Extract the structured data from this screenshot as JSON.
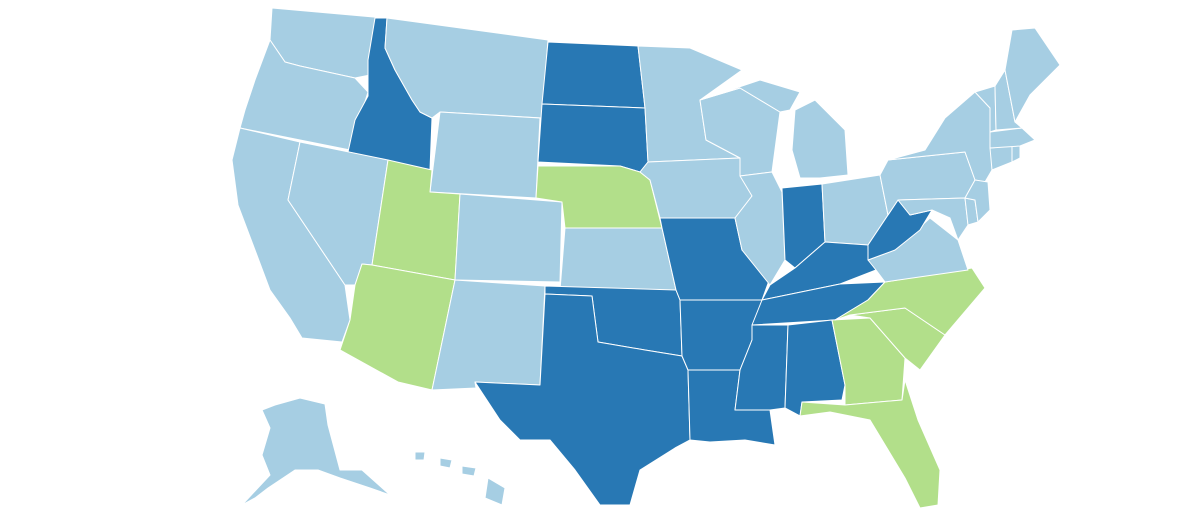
{
  "map": {
    "colors": {
      "light_blue": "#a6cee3",
      "dark_blue": "#2878b4",
      "green": "#b2df8a",
      "border": "#ffffff"
    },
    "states": [
      {
        "id": "WA",
        "category": "light_blue"
      },
      {
        "id": "OR",
        "category": "light_blue"
      },
      {
        "id": "CA",
        "category": "light_blue"
      },
      {
        "id": "ID",
        "category": "dark_blue"
      },
      {
        "id": "NV",
        "category": "light_blue"
      },
      {
        "id": "MT",
        "category": "light_blue"
      },
      {
        "id": "WY",
        "category": "light_blue"
      },
      {
        "id": "UT",
        "category": "green"
      },
      {
        "id": "AZ",
        "category": "green"
      },
      {
        "id": "CO",
        "category": "light_blue"
      },
      {
        "id": "NM",
        "category": "light_blue"
      },
      {
        "id": "ND",
        "category": "dark_blue"
      },
      {
        "id": "SD",
        "category": "dark_blue"
      },
      {
        "id": "NE",
        "category": "green"
      },
      {
        "id": "KS",
        "category": "light_blue"
      },
      {
        "id": "OK",
        "category": "dark_blue"
      },
      {
        "id": "TX",
        "category": "dark_blue"
      },
      {
        "id": "MN",
        "category": "light_blue"
      },
      {
        "id": "IA",
        "category": "light_blue"
      },
      {
        "id": "MO",
        "category": "dark_blue"
      },
      {
        "id": "AR",
        "category": "dark_blue"
      },
      {
        "id": "LA",
        "category": "dark_blue"
      },
      {
        "id": "WI",
        "category": "light_blue"
      },
      {
        "id": "IL",
        "category": "light_blue"
      },
      {
        "id": "MI",
        "category": "light_blue"
      },
      {
        "id": "IN",
        "category": "dark_blue"
      },
      {
        "id": "OH",
        "category": "light_blue"
      },
      {
        "id": "KY",
        "category": "dark_blue"
      },
      {
        "id": "TN",
        "category": "dark_blue"
      },
      {
        "id": "MS",
        "category": "dark_blue"
      },
      {
        "id": "AL",
        "category": "dark_blue"
      },
      {
        "id": "GA",
        "category": "green"
      },
      {
        "id": "FL",
        "category": "green"
      },
      {
        "id": "SC",
        "category": "green"
      },
      {
        "id": "NC",
        "category": "green"
      },
      {
        "id": "VA",
        "category": "light_blue"
      },
      {
        "id": "WV",
        "category": "dark_blue"
      },
      {
        "id": "PA",
        "category": "light_blue"
      },
      {
        "id": "NY",
        "category": "light_blue"
      },
      {
        "id": "MD",
        "category": "light_blue"
      },
      {
        "id": "DE",
        "category": "light_blue"
      },
      {
        "id": "NJ",
        "category": "light_blue"
      },
      {
        "id": "CT",
        "category": "light_blue"
      },
      {
        "id": "RI",
        "category": "light_blue"
      },
      {
        "id": "MA",
        "category": "light_blue"
      },
      {
        "id": "VT",
        "category": "light_blue"
      },
      {
        "id": "NH",
        "category": "light_blue"
      },
      {
        "id": "ME",
        "category": "light_blue"
      },
      {
        "id": "AK",
        "category": "light_blue"
      },
      {
        "id": "HI",
        "category": "light_blue"
      }
    ]
  }
}
